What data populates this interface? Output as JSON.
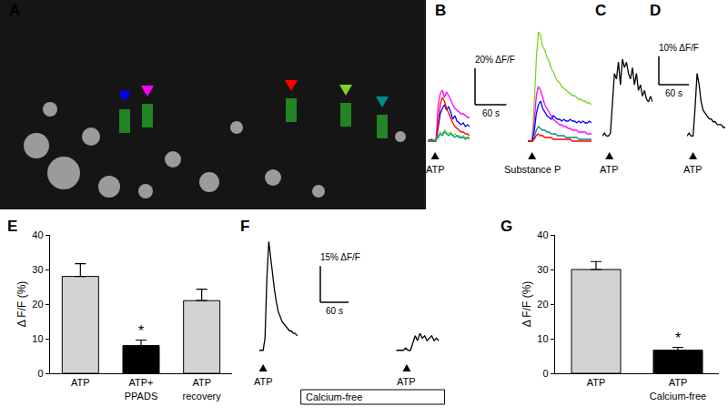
{
  "image_panel": {
    "label": "A"
  },
  "chart_data": [
    {
      "panel": "B",
      "type": "line",
      "tick_labels": false,
      "ylim": [
        -5,
        65
      ],
      "scale_bar": {
        "x": 60,
        "x_label": "60 s",
        "y": 20,
        "y_label": "20% ΔF/F"
      },
      "groups": [
        {
          "xlim": [
            0,
            80
          ],
          "x": [
            0,
            4,
            8,
            12,
            16,
            20,
            24,
            28,
            32,
            36,
            40,
            44,
            48,
            52,
            56,
            60,
            64,
            68,
            72,
            76,
            80
          ],
          "stimuli": [
            {
              "label": "ATP",
              "x": 14
            }
          ],
          "series": [
            {
              "color": "#ff00ff",
              "values": [
                0,
                0,
                0,
                0,
                1,
                20,
                26,
                28,
                24,
                27,
                25,
                22,
                20,
                18,
                17,
                16,
                15,
                15,
                14,
                13,
                13
              ]
            },
            {
              "color": "#0000ff",
              "values": [
                0,
                0,
                1,
                0,
                0,
                8,
                15,
                18,
                20,
                17,
                19,
                16,
                12,
                14,
                11,
                10,
                9,
                10,
                8,
                9,
                8
              ]
            },
            {
              "color": "#ff0000",
              "values": [
                0,
                1,
                0,
                0,
                0,
                10,
                20,
                24,
                22,
                18,
                15,
                12,
                10,
                8,
                7,
                6,
                5,
                5,
                4,
                4,
                3
              ]
            },
            {
              "color": "#7fd321",
              "values": [
                0,
                0,
                0,
                1,
                0,
                3,
                5,
                4,
                6,
                5,
                4,
                5,
                3,
                4,
                3,
                3,
                2,
                3,
                2,
                2,
                2
              ]
            },
            {
              "color": "#008b8b",
              "values": [
                0,
                0,
                0,
                0,
                1,
                2,
                4,
                3,
                5,
                4,
                3,
                4,
                3,
                2,
                3,
                2,
                2,
                2,
                1,
                2,
                1
              ]
            }
          ]
        },
        {
          "xlim": [
            0,
            120
          ],
          "x": [
            0,
            4,
            8,
            12,
            16,
            20,
            24,
            28,
            32,
            36,
            40,
            44,
            48,
            52,
            56,
            60,
            64,
            68,
            72,
            76,
            80,
            84,
            88,
            92,
            96,
            100,
            104,
            108,
            112,
            116,
            120
          ],
          "stimuli": [
            {
              "label": "Substance P",
              "x": 8
            }
          ],
          "series": [
            {
              "color": "#7fd321",
              "values": [
                0,
                0,
                0,
                20,
                45,
                60,
                58,
                52,
                50,
                46,
                44,
                40,
                38,
                35,
                33,
                32,
                30,
                29,
                28,
                27,
                26,
                25,
                25,
                24,
                23,
                23,
                22,
                22,
                21,
                21,
                20
              ]
            },
            {
              "color": "#ff00ff",
              "values": [
                0,
                0,
                0,
                10,
                25,
                30,
                28,
                24,
                20,
                18,
                16,
                14,
                12,
                11,
                10,
                9,
                9,
                8,
                8,
                7,
                7,
                6,
                6,
                6,
                5,
                5,
                5,
                5,
                4,
                4,
                4
              ]
            },
            {
              "color": "#0000ff",
              "values": [
                0,
                0,
                0,
                5,
                15,
                20,
                22,
                18,
                16,
                14,
                13,
                12,
                14,
                13,
                12,
                12,
                11,
                12,
                11,
                11,
                12,
                11,
                11,
                10,
                11,
                10,
                11,
                10,
                10,
                11,
                10
              ]
            },
            {
              "color": "#008b8b",
              "values": [
                0,
                0,
                0,
                2,
                6,
                8,
                7,
                6,
                6,
                5,
                5,
                4,
                4,
                4,
                3,
                3,
                3,
                3,
                2,
                2,
                2,
                2,
                2,
                2,
                1,
                1,
                1,
                1,
                1,
                1,
                1
              ]
            },
            {
              "color": "#ff0000",
              "values": [
                0,
                0,
                0,
                1,
                3,
                4,
                3,
                3,
                2,
                2,
                2,
                2,
                1,
                1,
                1,
                1,
                1,
                1,
                1,
                1,
                1,
                0,
                0,
                0,
                0,
                0,
                0,
                0,
                0,
                0,
                0
              ]
            }
          ]
        }
      ]
    },
    {
      "panel": "C",
      "type": "line",
      "tick_labels": false,
      "color": "#000000",
      "ylim": [
        -5,
        35
      ],
      "xlim": [
        0,
        100
      ],
      "x": [
        0,
        4,
        8,
        12,
        16,
        20,
        24,
        28,
        32,
        36,
        40,
        44,
        48,
        52,
        56,
        60,
        64,
        68,
        72,
        76,
        80,
        84,
        88,
        92,
        96,
        100
      ],
      "stimuli": [
        {
          "label": "ATP",
          "x": 14
        }
      ],
      "series": [
        {
          "values": [
            0,
            1,
            0,
            0,
            1,
            10,
            22,
            20,
            26,
            18,
            27,
            24,
            26,
            22,
            20,
            24,
            18,
            22,
            16,
            18,
            14,
            16,
            13,
            12,
            14,
            12
          ]
        }
      ]
    },
    {
      "panel": "D",
      "type": "line",
      "tick_labels": false,
      "color": "#000000",
      "ylim": [
        -5,
        35
      ],
      "xlim": [
        0,
        76
      ],
      "scale_bar": {
        "x": 60,
        "x_label": "60 s",
        "y": 10,
        "y_label": "10% ΔF/F"
      },
      "x": [
        0,
        4,
        8,
        12,
        16,
        20,
        24,
        28,
        32,
        36,
        40,
        44,
        48,
        52,
        56,
        60,
        64,
        68,
        72,
        76
      ],
      "stimuli": [
        {
          "label": "ATP",
          "x": 12
        }
      ],
      "series": [
        {
          "values": [
            0,
            1,
            0,
            0,
            10,
            22,
            18,
            12,
            9,
            8,
            7,
            6,
            6,
            5,
            5,
            4,
            4,
            4,
            3,
            3
          ]
        }
      ]
    },
    {
      "panel": "E",
      "type": "bar",
      "grid": false,
      "ylim": [
        0,
        40
      ],
      "yticks": [
        0,
        10,
        20,
        30,
        40
      ],
      "y_label": "Δ F/F (%)",
      "categories": [
        "ATP",
        "ATP+\nPPADS",
        "ATP\nrecovery"
      ],
      "values": [
        28,
        8,
        21
      ],
      "errors": [
        3.7,
        1.6,
        3.3
      ],
      "colors": [
        "#d3d3d3",
        "#000000",
        "#d3d3d3"
      ],
      "annotations": [
        {
          "x": 1,
          "text": "*"
        }
      ]
    },
    {
      "panel": "F",
      "type": "line",
      "tick_labels": false,
      "color": "#000000",
      "ylim": [
        -5,
        50
      ],
      "xlim": [
        0,
        395
      ],
      "scale_bar": {
        "x": 60,
        "x_label": "60 s",
        "y": 15,
        "y_label": "15% ΔF/F"
      },
      "period": {
        "label": "Calcium-free",
        "x": [
          88,
          392
        ]
      },
      "x": [
        0,
        4,
        8,
        12,
        16,
        20,
        24,
        28,
        32,
        36,
        40,
        44,
        48,
        52,
        56,
        60,
        64,
        68,
        72,
        76,
        80,
        85,
        290,
        295,
        300,
        305,
        310,
        315,
        320,
        325,
        330,
        335,
        340,
        345,
        350,
        355,
        360,
        365,
        370,
        375,
        380
      ],
      "stimuli": [
        {
          "label": "ATP",
          "x": 8
        },
        {
          "label": "ATP",
          "x": 312
        }
      ],
      "series": [
        {
          "values": [
            0,
            0,
            0,
            5,
            30,
            45,
            38,
            30,
            25,
            20,
            16,
            14,
            12,
            11,
            10,
            9,
            8,
            8,
            7,
            7,
            6,
            null,
            0,
            0,
            0,
            0,
            1,
            0,
            0,
            3,
            6,
            4,
            7,
            5,
            6,
            4,
            5,
            6,
            4,
            5,
            4
          ]
        }
      ]
    },
    {
      "panel": "G",
      "type": "bar",
      "grid": false,
      "ylim": [
        0,
        40
      ],
      "yticks": [
        0,
        10,
        20,
        30,
        40
      ],
      "y_label": "Δ F/F (%)",
      "categories": [
        "ATP",
        "ATP\nCalcium-free"
      ],
      "values": [
        30,
        6.7
      ],
      "errors": [
        2.3,
        0.8
      ],
      "colors": [
        "#d3d3d3",
        "#000000"
      ],
      "annotations": [
        {
          "x": 1,
          "text": "*"
        }
      ]
    }
  ]
}
